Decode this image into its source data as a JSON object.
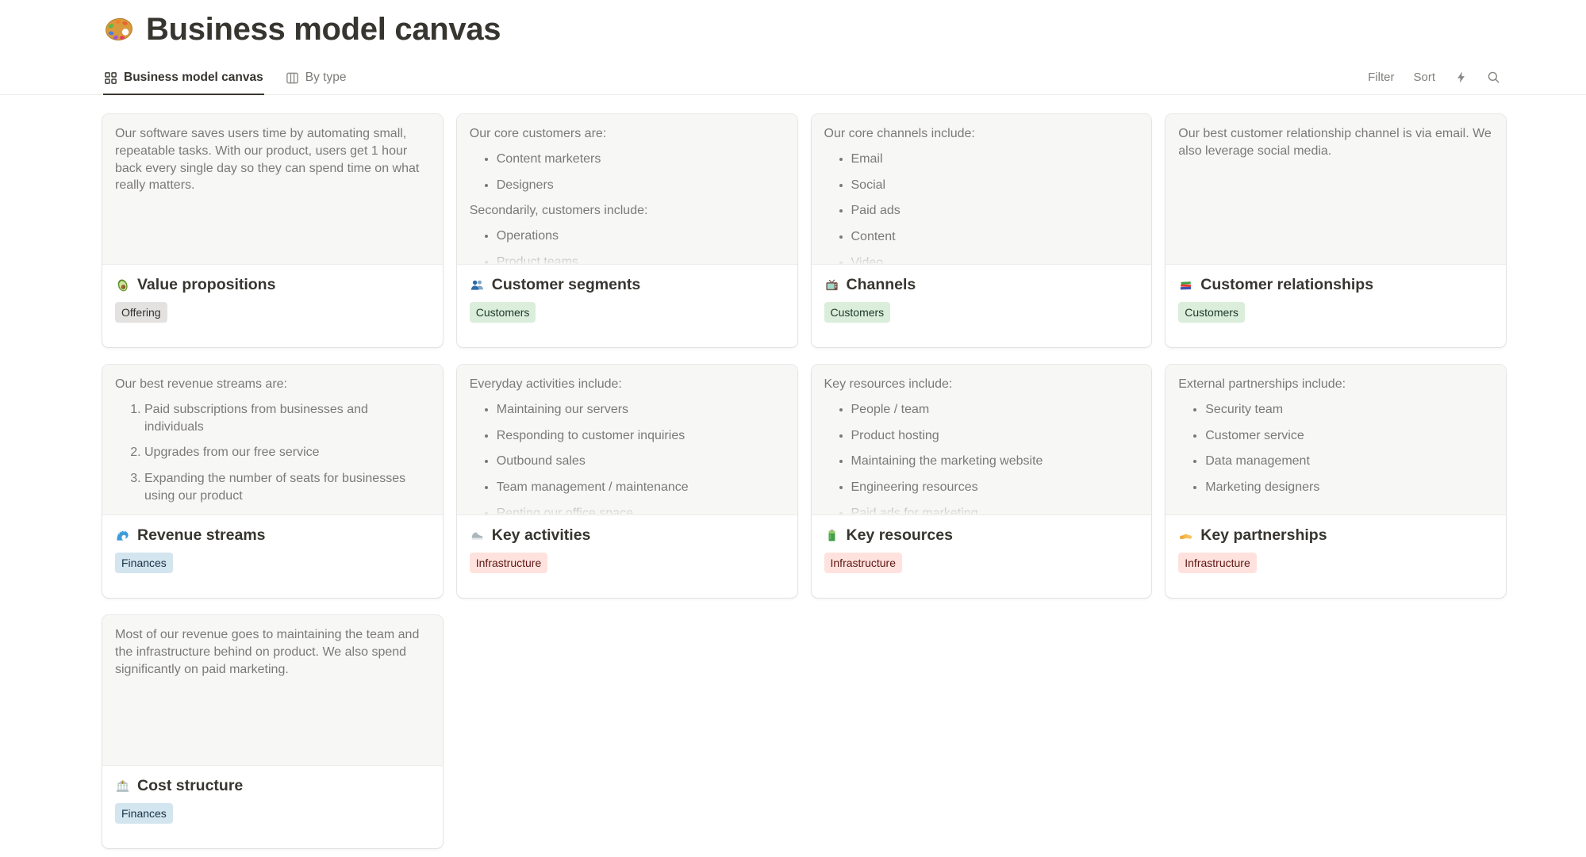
{
  "page": {
    "icon": "palette-icon",
    "title": "Business model canvas"
  },
  "tabs": [
    {
      "id": "business-model-canvas",
      "icon": "gallery-view-icon",
      "label": "Business model canvas",
      "active": true
    },
    {
      "id": "by-type",
      "icon": "board-view-icon",
      "label": "By type",
      "active": false
    }
  ],
  "toolbar": {
    "filter_label": "Filter",
    "sort_label": "Sort",
    "icons": [
      "lightning-icon",
      "search-icon"
    ]
  },
  "tag_styles": {
    "gray": {
      "bg": "#E3E2E0",
      "text": "#32302C"
    },
    "green": {
      "bg": "#DBEDDB",
      "text": "#1C3829"
    },
    "red": {
      "bg": "#FFE2DD",
      "text": "#5D1715"
    },
    "blue": {
      "bg": "#D3E5EF",
      "text": "#183347"
    }
  },
  "cards": [
    {
      "id": "value-propositions",
      "icon": "avocado-icon",
      "title": "Value propositions",
      "tag": {
        "label": "Offering",
        "color": "gray"
      },
      "blocks": [
        {
          "type": "p",
          "text": "Our software saves users time by automating small, repeatable tasks. With our product, users get 1 hour back every single day so they can spend time on what really matters."
        }
      ]
    },
    {
      "id": "customer-segments",
      "icon": "people-icon",
      "title": "Customer segments",
      "tag": {
        "label": "Customers",
        "color": "green"
      },
      "blocks": [
        {
          "type": "p",
          "text": "Our core customers are:"
        },
        {
          "type": "ul",
          "items": [
            "Content marketers",
            "Designers"
          ]
        },
        {
          "type": "p",
          "text": "Secondarily, customers include:"
        },
        {
          "type": "ul",
          "items": [
            "Operations",
            "Product teams"
          ]
        }
      ]
    },
    {
      "id": "channels",
      "icon": "tv-icon",
      "title": "Channels",
      "tag": {
        "label": "Customers",
        "color": "green"
      },
      "blocks": [
        {
          "type": "p",
          "text": "Our core channels include:"
        },
        {
          "type": "ul",
          "items": [
            "Email",
            "Social",
            "Paid ads",
            "Content",
            "Video"
          ]
        }
      ]
    },
    {
      "id": "customer-relationships",
      "icon": "books-icon",
      "title": "Customer relationships",
      "tag": {
        "label": "Customers",
        "color": "green"
      },
      "blocks": [
        {
          "type": "p",
          "text": "Our best customer relationship channel is via email. We also leverage social media."
        }
      ]
    },
    {
      "id": "revenue-streams",
      "icon": "wave-icon",
      "title": "Revenue streams",
      "tag": {
        "label": "Finances",
        "color": "blue"
      },
      "blocks": [
        {
          "type": "p",
          "text": "Our best revenue streams are:"
        },
        {
          "type": "ol",
          "items": [
            "Paid subscriptions from businesses and individuals",
            "Upgrades from our free service",
            "Expanding the number of seats for businesses using our product"
          ]
        }
      ]
    },
    {
      "id": "key-activities",
      "icon": "shoe-icon",
      "title": "Key activities",
      "tag": {
        "label": "Infrastructure",
        "color": "red"
      },
      "blocks": [
        {
          "type": "p",
          "text": "Everyday activities include:"
        },
        {
          "type": "ul",
          "items": [
            "Maintaining our servers",
            "Responding to customer inquiries",
            "Outbound sales",
            "Team management / maintenance",
            "Renting our office space"
          ]
        }
      ]
    },
    {
      "id": "key-resources",
      "icon": "battery-icon",
      "title": "Key resources",
      "tag": {
        "label": "Infrastructure",
        "color": "red"
      },
      "blocks": [
        {
          "type": "p",
          "text": "Key resources include:"
        },
        {
          "type": "ul",
          "items": [
            "People / team",
            "Product hosting",
            "Maintaining the marketing website",
            "Engineering resources",
            "Paid ads for marketing"
          ]
        }
      ]
    },
    {
      "id": "key-partnerships",
      "icon": "handshake-icon",
      "title": "Key partnerships",
      "tag": {
        "label": "Infrastructure",
        "color": "red"
      },
      "blocks": [
        {
          "type": "p",
          "text": "External partnerships include:"
        },
        {
          "type": "ul",
          "items": [
            "Security team",
            "Customer service",
            "Data management",
            "Marketing designers"
          ]
        }
      ]
    },
    {
      "id": "cost-structure",
      "icon": "bank-icon",
      "title": "Cost structure",
      "tag": {
        "label": "Finances",
        "color": "blue"
      },
      "blocks": [
        {
          "type": "p",
          "text": "Most of our revenue goes to maintaining the team and the infrastructure behind on product. We also spend significantly on paid marketing."
        }
      ]
    }
  ]
}
